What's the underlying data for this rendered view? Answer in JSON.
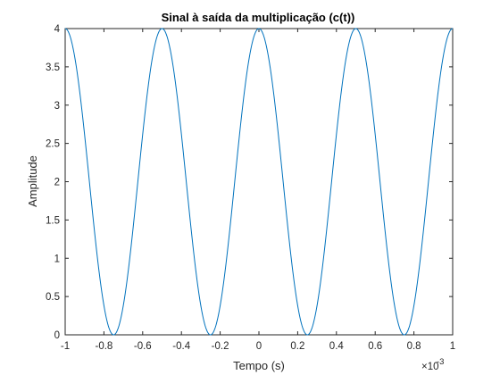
{
  "chart_data": {
    "type": "line",
    "title": "Sinal à saída da multiplicação (c(t))",
    "xlabel": "Tempo (s)",
    "ylabel": "Amplitude",
    "x_multiplier_base": "×10",
    "x_multiplier_exponent": "-3",
    "xlim": [
      -1,
      1
    ],
    "ylim": [
      0,
      4
    ],
    "xticks": [
      -1,
      -0.8,
      -0.6,
      -0.4,
      -0.2,
      0,
      0.2,
      0.4,
      0.6,
      0.8,
      1
    ],
    "xtick_labels": [
      "-1",
      "-0.8",
      "-0.6",
      "-0.4",
      "-0.2",
      "0",
      "0.2",
      "0.4",
      "0.6",
      "0.8",
      "1"
    ],
    "yticks": [
      0,
      0.5,
      1,
      1.5,
      2,
      2.5,
      3,
      3.5,
      4
    ],
    "ytick_labels": [
      "0",
      "0.5",
      "1",
      "1.5",
      "2",
      "2.5",
      "3",
      "3.5",
      "4"
    ],
    "grid": false,
    "series": [
      {
        "name": "c(t)",
        "color": "#0072BD",
        "expression": "2 + 2*cos(2*pi*f*t)",
        "offset": 2,
        "amplitude": 2,
        "period": 0.5,
        "peaks_x": [
          -1,
          -0.5,
          0,
          0.5,
          1
        ],
        "troughs_x": [
          -0.75,
          -0.25,
          0.25,
          0.75
        ],
        "peak_value": 4,
        "trough_value": 0
      }
    ]
  }
}
